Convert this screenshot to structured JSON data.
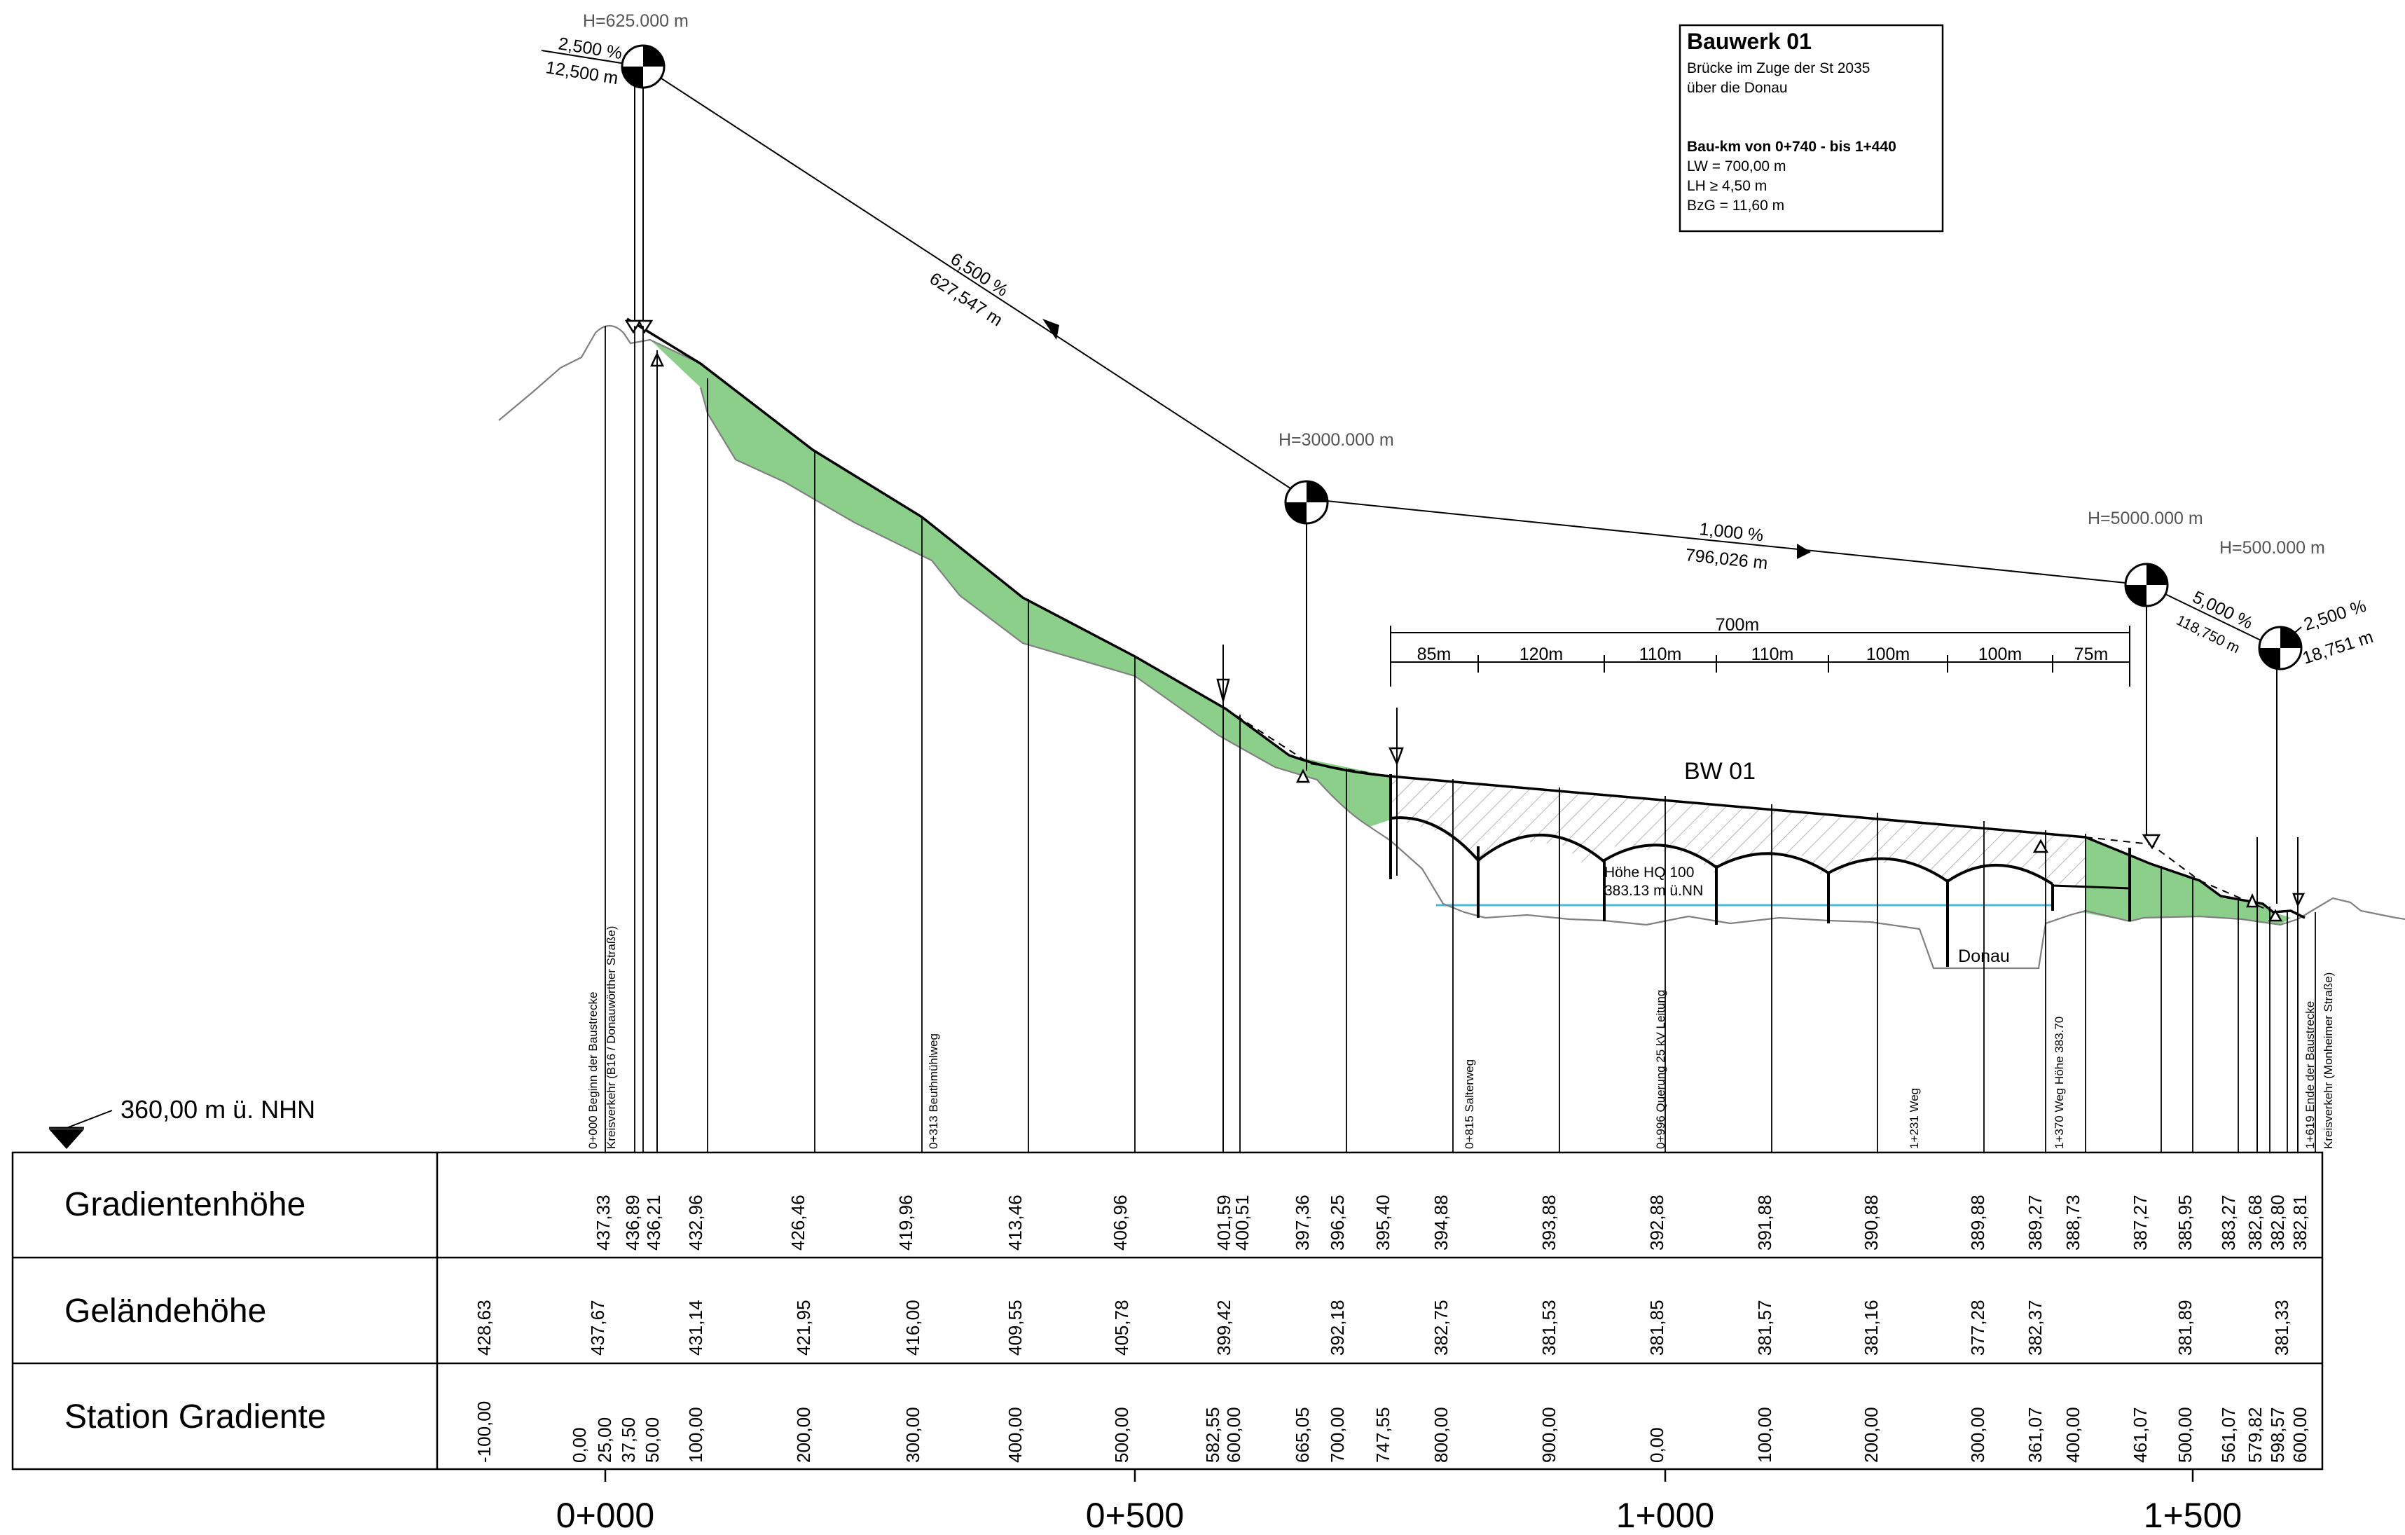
{
  "title_block": {
    "title": "Bauwerk  01",
    "line1": "Brücke im Zuge der St 2035",
    "line2": "über die Donau",
    "baukm": "Bau-km  von 0+740 - bis 1+440",
    "lw": "LW  =  700,00 m",
    "lh": "LH   ≥     4,50 m",
    "bzg": "BzG =    11,60 m"
  },
  "reference_level": "360,00 m ü. NHN",
  "row_labels": {
    "gradient": "Gradientenhöhe",
    "terrain": "Geländehöhe",
    "station": "Station Gradiente"
  },
  "axis_labels": [
    "0+000",
    "0+500",
    "1+000",
    "1+500"
  ],
  "vertical_curves": [
    {
      "radius": "H=625.000 m"
    },
    {
      "radius": "H=3000.000 m"
    },
    {
      "radius": "H=5000.000 m"
    },
    {
      "radius": "H=500.000 m"
    }
  ],
  "slopes": [
    {
      "percent": "2,500 %",
      "length": "12,500 m"
    },
    {
      "percent": "6,500 %",
      "length": "627,547 m"
    },
    {
      "percent": "1,000 %",
      "length": "796,026 m"
    },
    {
      "percent": "5,000 %",
      "length": "118,750 m"
    },
    {
      "percent": "2,500 %",
      "length": "18,751 m"
    }
  ],
  "bridge": {
    "label": "BW 01",
    "total_span": "700m",
    "spans": [
      "85m",
      "120m",
      "110m",
      "110m",
      "100m",
      "100m",
      "75m"
    ],
    "hq_label_1": "Höhe HQ 100",
    "hq_label_2": "383.13 m ü.NN",
    "river": "Donau"
  },
  "annotations": [
    {
      "line1": "0+000 Beginn der Baustrecke",
      "line2": "Kreisverkehr (B16 / Donauwörther Straße)"
    },
    {
      "line1": "0+313 Beuthmühlweg",
      "line2": ""
    },
    {
      "line1": "0+815 Salterweg",
      "line2": ""
    },
    {
      "line1": "0+996 Querung 25 kV Leitung",
      "line2": ""
    },
    {
      "line1": "1+231 Weg",
      "line2": ""
    },
    {
      "line1": "1+370 Weg Höhe 383.70",
      "line2": ""
    },
    {
      "line1": "1+619 Ende der Baustrecke",
      "line2": "Kreisverkehr (Monheimer Straße)"
    }
  ],
  "gradient_heights": [
    "437,33",
    "436,89",
    "436,21",
    "432,96",
    "426,46",
    "419,96",
    "413,46",
    "406,96",
    "401,59",
    "400,51",
    "397,36",
    "396,25",
    "395,40",
    "394,88",
    "393,88",
    "392,88",
    "391,88",
    "390,88",
    "389,88",
    "389,27",
    "388,73",
    "387,27",
    "385,95",
    "383,27",
    "382,68",
    "382,80",
    "382,81"
  ],
  "terrain_heights": [
    "428,63",
    "437,67",
    "431,14",
    "421,95",
    "416,00",
    "409,55",
    "405,78",
    "399,42",
    "392,18",
    "382,75",
    "381,53",
    "381,85",
    "381,57",
    "381,16",
    "377,28",
    "382,37",
    "381,89",
    "381,33"
  ],
  "stations": [
    "-100,00",
    "0,00",
    "25,00",
    "37,50",
    "50,00",
    "100,00",
    "200,00",
    "300,00",
    "400,00",
    "500,00",
    "582,55",
    "600,00",
    "665,05",
    "700,00",
    "747,55",
    "800,00",
    "900,00",
    "0,00",
    "100,00",
    "200,00",
    "300,00",
    "361,07",
    "400,00",
    "461,07",
    "500,00",
    "561,07",
    "579,82",
    "598,57",
    "600,00"
  ],
  "colors": {
    "cut_fill": "#8ccf8a",
    "water": "#4db8d8",
    "line": "#000000",
    "terrain": "#808080"
  }
}
